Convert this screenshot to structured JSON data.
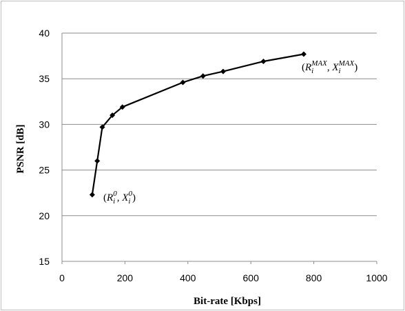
{
  "chart_data": {
    "type": "line",
    "title": "",
    "xlabel": "Bit-rate [Kbps]",
    "ylabel": "PSNR [dB]",
    "xlim": [
      0,
      1000
    ],
    "ylim": [
      15,
      40
    ],
    "x_ticks": [
      "0",
      "200",
      "400",
      "600",
      "800",
      "1000"
    ],
    "y_ticks": [
      "15",
      "20",
      "25",
      "30",
      "35",
      "40"
    ],
    "grid": "horizontal",
    "legend": "none",
    "series": [
      {
        "x": [
          96,
          112,
          128,
          160,
          192,
          384,
          448,
          512,
          640,
          768
        ],
        "y": [
          22.3,
          26.0,
          29.7,
          31.0,
          31.9,
          34.6,
          35.3,
          35.8,
          36.9,
          37.7
        ]
      }
    ],
    "annotations": {
      "start": {
        "open": "(",
        "r": "R",
        "r_sub": "i",
        "r_sup": "0",
        "sep": ", ",
        "x": "X",
        "x_sub": "i",
        "x_sup": "0",
        "close": ")"
      },
      "end": {
        "open": "(",
        "r": "R",
        "r_sub": "i",
        "r_sup": "MAX",
        "sep": ", ",
        "x": "X",
        "x_sub": "i",
        "x_sup": "MAX",
        "close": ")"
      }
    },
    "colors": {
      "line": "#000000",
      "grid": "#8c8c8c",
      "axis": "#8c8c8c"
    }
  }
}
